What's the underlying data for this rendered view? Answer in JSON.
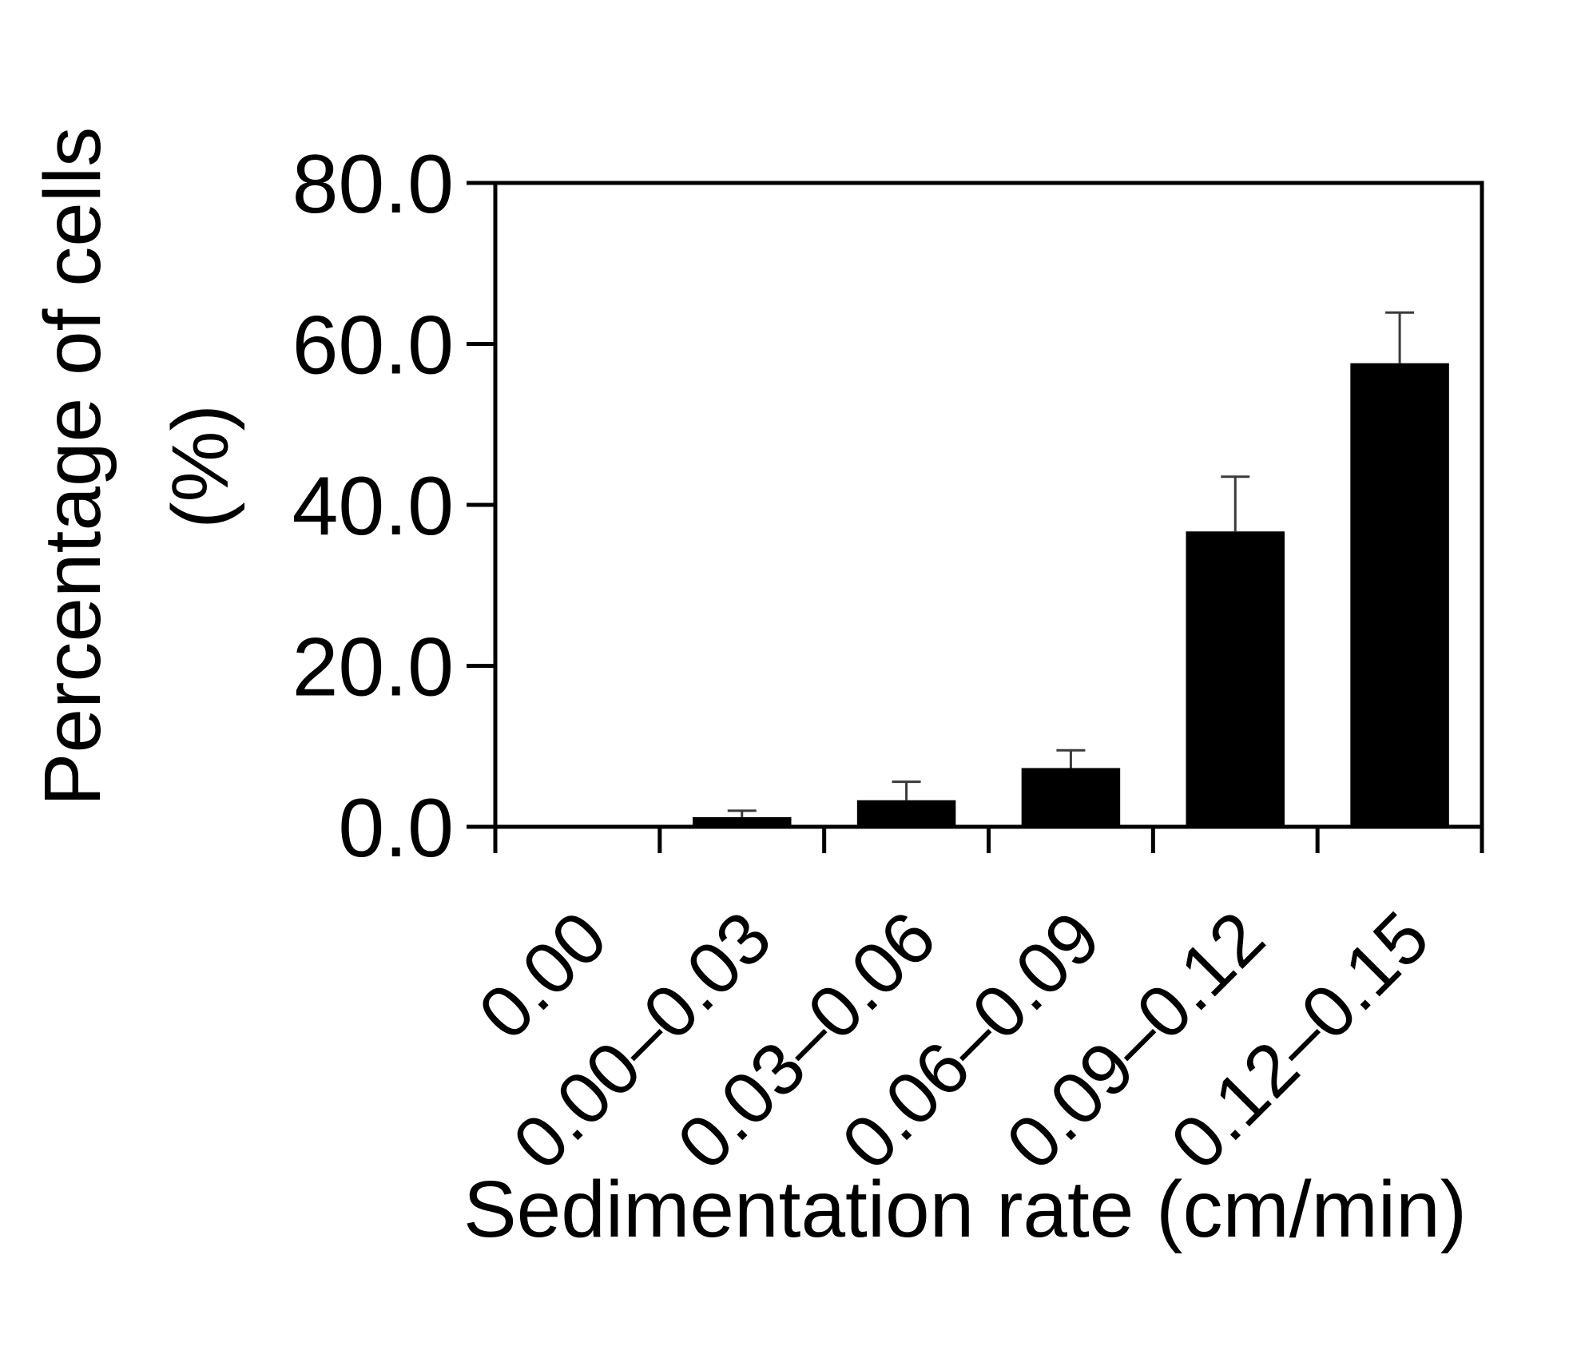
{
  "chart_data": {
    "type": "bar",
    "title": "",
    "xlabel": "Sedimentation rate (cm/min)",
    "ylabel_line1": "Percentage of cells",
    "ylabel_line2": "(%)",
    "categories": [
      "0.00",
      "0.00–0.03",
      "0.03–0.06",
      "0.06–0.09",
      "0.09–0.12",
      "0.12–0.15"
    ],
    "values": [
      0.0,
      1.2,
      3.3,
      7.3,
      36.7,
      57.6
    ],
    "errors": [
      0.0,
      0.8,
      2.3,
      2.2,
      6.8,
      6.3
    ],
    "ylim": [
      0,
      80
    ],
    "yticks": [
      "0.0",
      "20.0",
      "40.0",
      "60.0",
      "80.0"
    ],
    "ytick_values": [
      0,
      20,
      40,
      60,
      80
    ],
    "grid": false,
    "bar_color": "#000000",
    "error_color": "#3a3a3a"
  }
}
